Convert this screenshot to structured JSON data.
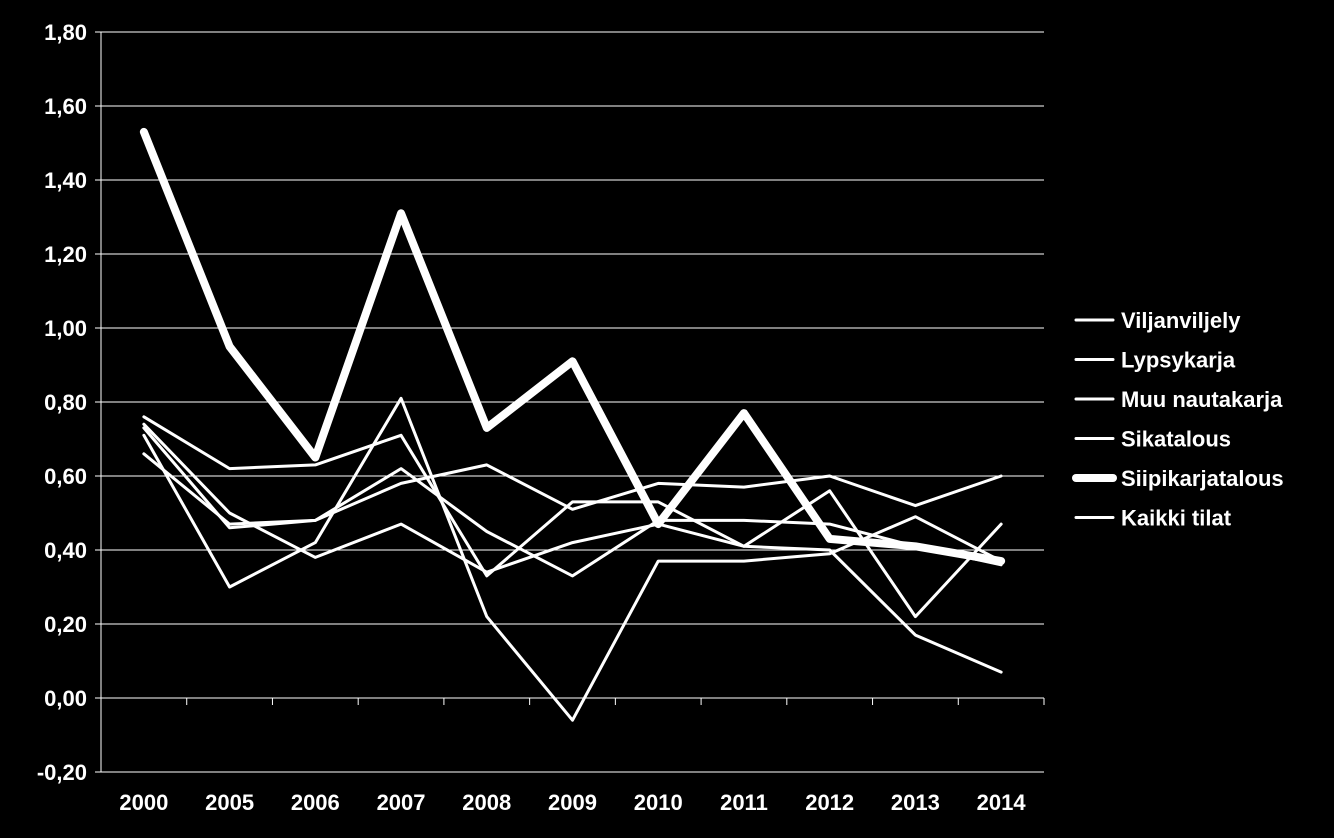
{
  "chart_data": {
    "type": "line",
    "title": "",
    "xlabel": "",
    "ylabel": "",
    "categories": [
      "2000",
      "2005",
      "2006",
      "2007",
      "2008",
      "2009",
      "2010",
      "2011",
      "2012",
      "2013",
      "2014"
    ],
    "ylim": [
      -0.2,
      1.8
    ],
    "yticks": [
      -0.2,
      0,
      0.2,
      0.4,
      0.6,
      0.8,
      1.0,
      1.2,
      1.4,
      1.6,
      1.8
    ],
    "ytick_labels": [
      "-0,20",
      "0,00",
      "0,20",
      "0,40",
      "0,60",
      "0,80",
      "1,00",
      "1,20",
      "1,40",
      "1,60",
      "1,80"
    ],
    "grid": "horizontal",
    "legend_position": "right",
    "line_color": "#ffffff",
    "background": "#000000",
    "series": [
      {
        "name": "Viljanviljely",
        "emphasis": "normal",
        "values": [
          0.71,
          0.3,
          0.42,
          0.81,
          0.22,
          -0.06,
          0.37,
          0.37,
          0.39,
          0.49,
          0.37
        ]
      },
      {
        "name": "Lypsykarja",
        "emphasis": "normal",
        "values": [
          0.74,
          0.5,
          0.38,
          0.47,
          0.34,
          0.42,
          0.47,
          0.41,
          0.4,
          0.17,
          0.07
        ]
      },
      {
        "name": "Muu nautakarja",
        "emphasis": "normal",
        "values": [
          0.76,
          0.62,
          0.63,
          0.71,
          0.33,
          0.53,
          0.53,
          0.41,
          0.56,
          0.22,
          0.47
        ]
      },
      {
        "name": "Sikatalous",
        "emphasis": "normal",
        "values": [
          0.66,
          0.47,
          0.48,
          0.62,
          0.45,
          0.33,
          0.48,
          0.48,
          0.47,
          0.41,
          0.36
        ]
      },
      {
        "name": "Siipikarjatalous",
        "emphasis": "bold",
        "values": [
          1.53,
          0.95,
          0.65,
          1.31,
          0.73,
          0.91,
          0.47,
          0.77,
          0.43,
          0.41,
          0.37
        ]
      },
      {
        "name": "Kaikki tilat",
        "emphasis": "normal",
        "values": [
          0.73,
          0.46,
          0.48,
          0.58,
          0.63,
          0.51,
          0.58,
          0.57,
          0.6,
          0.52,
          0.6
        ]
      }
    ]
  }
}
